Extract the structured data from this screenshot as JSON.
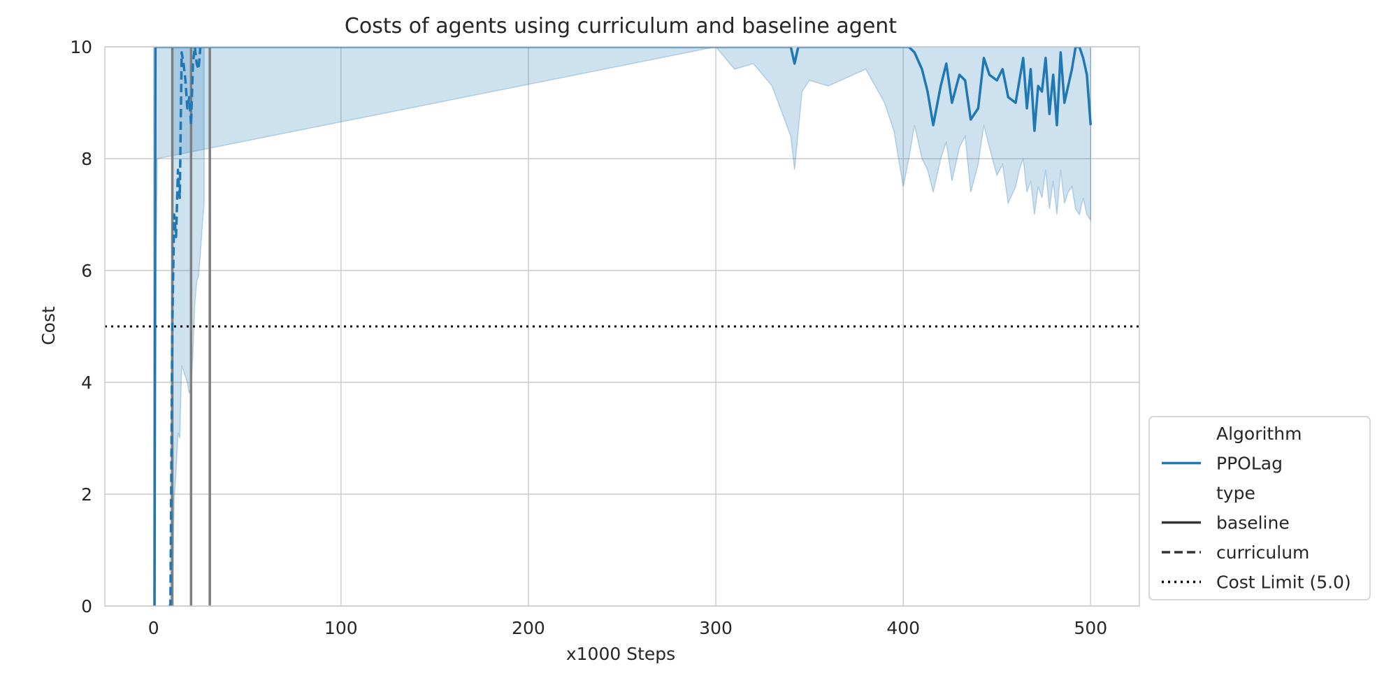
{
  "chart_data": {
    "type": "line",
    "title": "Costs of agents using curriculum and baseline agent",
    "xlabel": "x1000 Steps",
    "ylabel": "Cost",
    "xlim": [
      -26,
      526
    ],
    "ylim": [
      0,
      10
    ],
    "x_ticks": [
      0,
      100,
      200,
      300,
      400,
      500
    ],
    "y_ticks": [
      0,
      2,
      4,
      6,
      8,
      10
    ],
    "grid": true,
    "legend": {
      "placement": "lower-right outside",
      "entries": [
        {
          "label": "Algorithm",
          "style": "header"
        },
        {
          "label": "PPOLag",
          "style": "solid",
          "color": "#1f77b4"
        },
        {
          "label": "type",
          "style": "header"
        },
        {
          "label": "baseline",
          "style": "solid",
          "color": "#333333"
        },
        {
          "label": "curriculum",
          "style": "dashed",
          "color": "#333333"
        },
        {
          "label": "Cost Limit (5.0)",
          "style": "dotted",
          "color": "#000000"
        }
      ]
    },
    "cost_limit": 5.0,
    "curriculum_boundaries": [
      10,
      20,
      30
    ],
    "colors": {
      "series": "#1f77b4",
      "band": "#1f77b4",
      "boundary": "#7f7f7f",
      "limit": "#000000",
      "grid": "#cccccc"
    },
    "series": [
      {
        "name": "baseline",
        "style": "solid",
        "x": [
          0,
          0.5,
          1,
          1.5,
          2,
          300,
          310,
          320,
          330,
          340,
          342,
          344,
          346,
          350,
          360,
          380,
          390,
          395,
          400,
          403,
          406,
          410,
          413,
          416,
          420,
          423,
          426,
          430,
          433,
          436,
          440,
          443,
          446,
          450,
          453,
          456,
          460,
          462,
          464,
          466,
          468,
          470,
          472,
          474,
          476,
          478,
          480,
          482,
          484,
          486,
          488,
          490,
          492,
          494,
          496,
          498,
          500
        ],
        "y": [
          0,
          0,
          10,
          10,
          10,
          10,
          10,
          10,
          10,
          10,
          9.7,
          10,
          10,
          10,
          10,
          10,
          10,
          10,
          10,
          10,
          9.9,
          9.6,
          9.2,
          8.6,
          9.3,
          9.7,
          9.0,
          9.5,
          9.4,
          8.7,
          8.9,
          9.8,
          9.5,
          9.4,
          9.6,
          9.1,
          9.0,
          9.4,
          9.8,
          8.9,
          9.6,
          8.5,
          9.3,
          9.2,
          9.8,
          8.8,
          9.5,
          8.6,
          9.9,
          9.0,
          9.3,
          9.6,
          10,
          10,
          9.8,
          9.5,
          8.6
        ],
        "band_lower": [
          0,
          0,
          2.9,
          6.5,
          8.0,
          10,
          9.6,
          9.7,
          9.3,
          8.4,
          7.8,
          8.5,
          9.2,
          9.4,
          9.3,
          9.6,
          9.0,
          8.5,
          7.5,
          8.0,
          8.6,
          8.0,
          7.8,
          7.4,
          8.0,
          8.3,
          7.6,
          8.2,
          8.4,
          7.4,
          7.9,
          8.6,
          8.2,
          7.7,
          7.9,
          7.2,
          7.5,
          7.8,
          8.0,
          7.4,
          7.6,
          7.0,
          7.5,
          7.3,
          7.8,
          7.1,
          7.6,
          7.0,
          7.8,
          7.2,
          7.4,
          7.5,
          7.1,
          7.0,
          7.3,
          7.0,
          6.9
        ],
        "band_upper": [
          0,
          0,
          10,
          10,
          10,
          10,
          10,
          10,
          10,
          10,
          10,
          10,
          10,
          10,
          10,
          10,
          10,
          10,
          10,
          10,
          10,
          10,
          10,
          10,
          10,
          10,
          10,
          10,
          10,
          10,
          10,
          10,
          10,
          10,
          10,
          10,
          10,
          10,
          10,
          10,
          10,
          10,
          10,
          10,
          10,
          10,
          10,
          10,
          10,
          10,
          10,
          10,
          10,
          10,
          10,
          10,
          10
        ]
      },
      {
        "name": "curriculum",
        "style": "dashed",
        "x": [
          8,
          9,
          10,
          11,
          12,
          13,
          14,
          15,
          16,
          17,
          18,
          19,
          20,
          21,
          22,
          23,
          24,
          25,
          26,
          27
        ],
        "y": [
          0,
          0,
          5.0,
          7.0,
          6.6,
          7.8,
          7.3,
          9.9,
          9.7,
          9.4,
          8.9,
          9.1,
          8.6,
          9.7,
          10,
          9.7,
          9.6,
          10,
          10,
          10
        ],
        "band_lower": [
          0,
          0,
          0,
          1.9,
          2.4,
          3.1,
          3.0,
          4.3,
          4.2,
          4.1,
          4.0,
          3.8,
          3.9,
          4.5,
          5.4,
          5.8,
          5.9,
          6.3,
          6.8,
          7.2
        ],
        "band_upper": [
          0,
          0,
          10,
          10,
          10,
          10,
          10,
          10,
          10,
          10,
          10,
          10,
          10,
          10,
          10,
          10,
          10,
          10,
          10,
          10
        ]
      }
    ]
  }
}
